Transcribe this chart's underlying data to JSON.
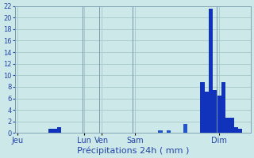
{
  "xlabel": "Précipitations 24h ( mm )",
  "bg_color": "#cce8e8",
  "grid_color": "#aacccc",
  "ylim": [
    0,
    22
  ],
  "yticks": [
    0,
    2,
    4,
    6,
    8,
    10,
    12,
    14,
    16,
    18,
    20,
    22
  ],
  "day_labels": [
    "Jeu",
    "Lun",
    "Ven",
    "Sam",
    "Dim"
  ],
  "n_bars": 56,
  "bar_values": [
    0,
    0,
    0,
    0,
    0,
    0,
    0,
    0,
    0.7,
    0.7,
    1.0,
    0,
    0,
    0,
    0,
    0,
    0,
    0,
    0,
    0,
    0,
    0,
    0,
    0,
    0,
    0,
    0,
    0,
    0,
    0,
    0,
    0,
    0,
    0,
    0.4,
    0,
    0.4,
    0,
    0,
    0,
    1.5,
    0,
    0,
    0,
    8.8,
    7.2,
    21.5,
    7.5,
    6.5,
    8.8,
    2.7,
    2.7,
    1.0,
    0.7,
    0,
    0
  ],
  "bar_colors_individual": [
    "#2255cc",
    "#2255cc",
    "#2255cc",
    "#2255cc",
    "#2255cc",
    "#2255cc",
    "#2255cc",
    "#2255cc",
    "#1133bb",
    "#1133bb",
    "#1133bb",
    "#2255cc",
    "#2255cc",
    "#2255cc",
    "#2255cc",
    "#2255cc",
    "#2255cc",
    "#2255cc",
    "#2255cc",
    "#2255cc",
    "#2255cc",
    "#2255cc",
    "#2255cc",
    "#2255cc",
    "#2255cc",
    "#2255cc",
    "#2255cc",
    "#2255cc",
    "#2255cc",
    "#2255cc",
    "#2255cc",
    "#2255cc",
    "#2255cc",
    "#2255cc",
    "#2255cc",
    "#2255cc",
    "#2255cc",
    "#2255cc",
    "#2255cc",
    "#2255cc",
    "#2255cc",
    "#2255cc",
    "#2255cc",
    "#2255cc",
    "#1133bb",
    "#1133bb",
    "#1133bb",
    "#1133bb",
    "#1133bb",
    "#1133bb",
    "#1133bb",
    "#1133bb",
    "#1133bb",
    "#1133bb",
    "#2255cc",
    "#2255cc"
  ],
  "day_tick_positions": [
    0,
    16,
    20,
    28,
    48
  ],
  "day_vline_positions": [
    0,
    16,
    20,
    28,
    48
  ]
}
